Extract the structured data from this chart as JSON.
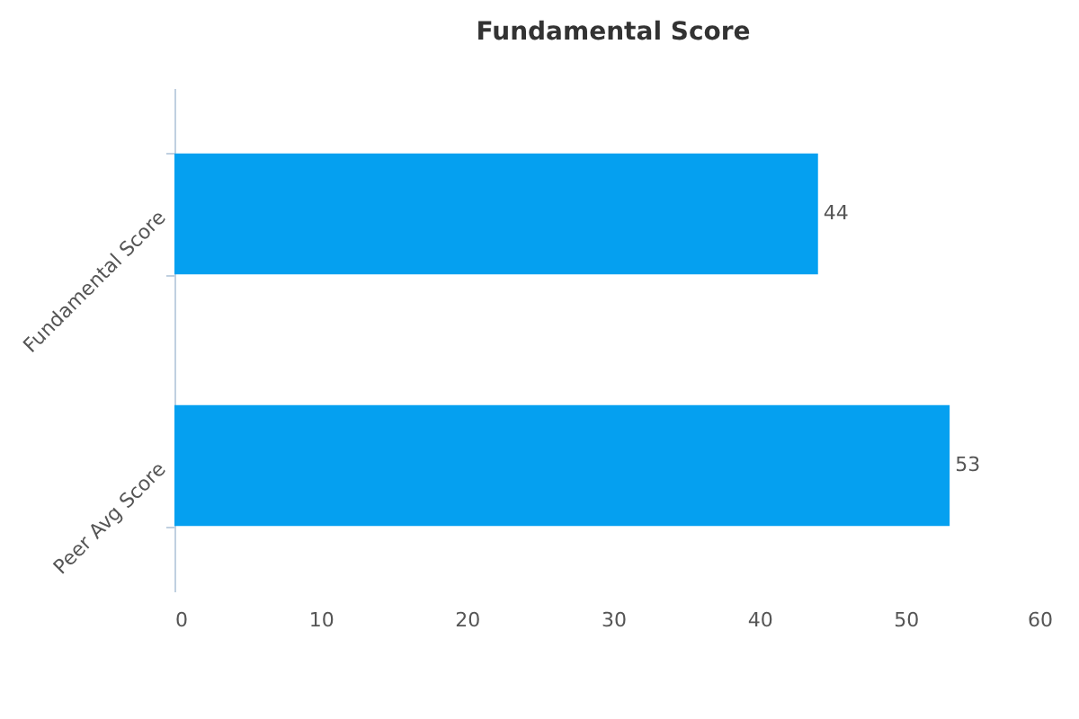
{
  "chart_data": {
    "type": "bar",
    "orientation": "horizontal",
    "title": "Fundamental Score",
    "categories": [
      "Fundamental Score",
      "Peer Avg Score"
    ],
    "series": [
      {
        "color": "#05a0f0",
        "values": [
          44,
          53
        ]
      }
    ],
    "xlim": [
      0,
      60
    ],
    "xticks": [
      0,
      10,
      20,
      30,
      40,
      50,
      60
    ],
    "grid": false,
    "data_labels": true,
    "legend": false
  }
}
